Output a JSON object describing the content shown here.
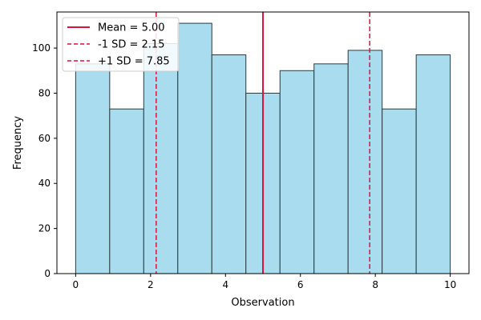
{
  "chart_data": {
    "type": "bar",
    "title": "",
    "xlabel": "Observation",
    "ylabel": "Frequency",
    "xlim": [
      -0.5,
      10.5
    ],
    "ylim": [
      0,
      116
    ],
    "grid": false,
    "legend_position": "top-left",
    "xticks": [
      0,
      2,
      4,
      6,
      8,
      10
    ],
    "yticks": [
      0,
      20,
      40,
      60,
      80,
      100
    ],
    "bins": {
      "edges": [
        0,
        0.909,
        1.818,
        2.727,
        3.636,
        4.545,
        5.455,
        6.364,
        7.273,
        8.182,
        9.091,
        10
      ],
      "values": [
        93,
        73,
        102,
        111,
        97,
        80,
        90,
        93,
        99,
        73,
        97
      ]
    },
    "reference_lines": [
      {
        "label": "Mean = 5.00",
        "x": 5.0,
        "style": "solid"
      },
      {
        "label": "-1 SD = 2.15",
        "x": 2.15,
        "style": "dashed"
      },
      {
        "label": "+1 SD = 7.85",
        "x": 7.85,
        "style": "dashed"
      }
    ],
    "colors": {
      "bar_fill": "#a8dcee",
      "bar_edge": "#2b3a3f",
      "reference_line": "#dc143c"
    }
  }
}
